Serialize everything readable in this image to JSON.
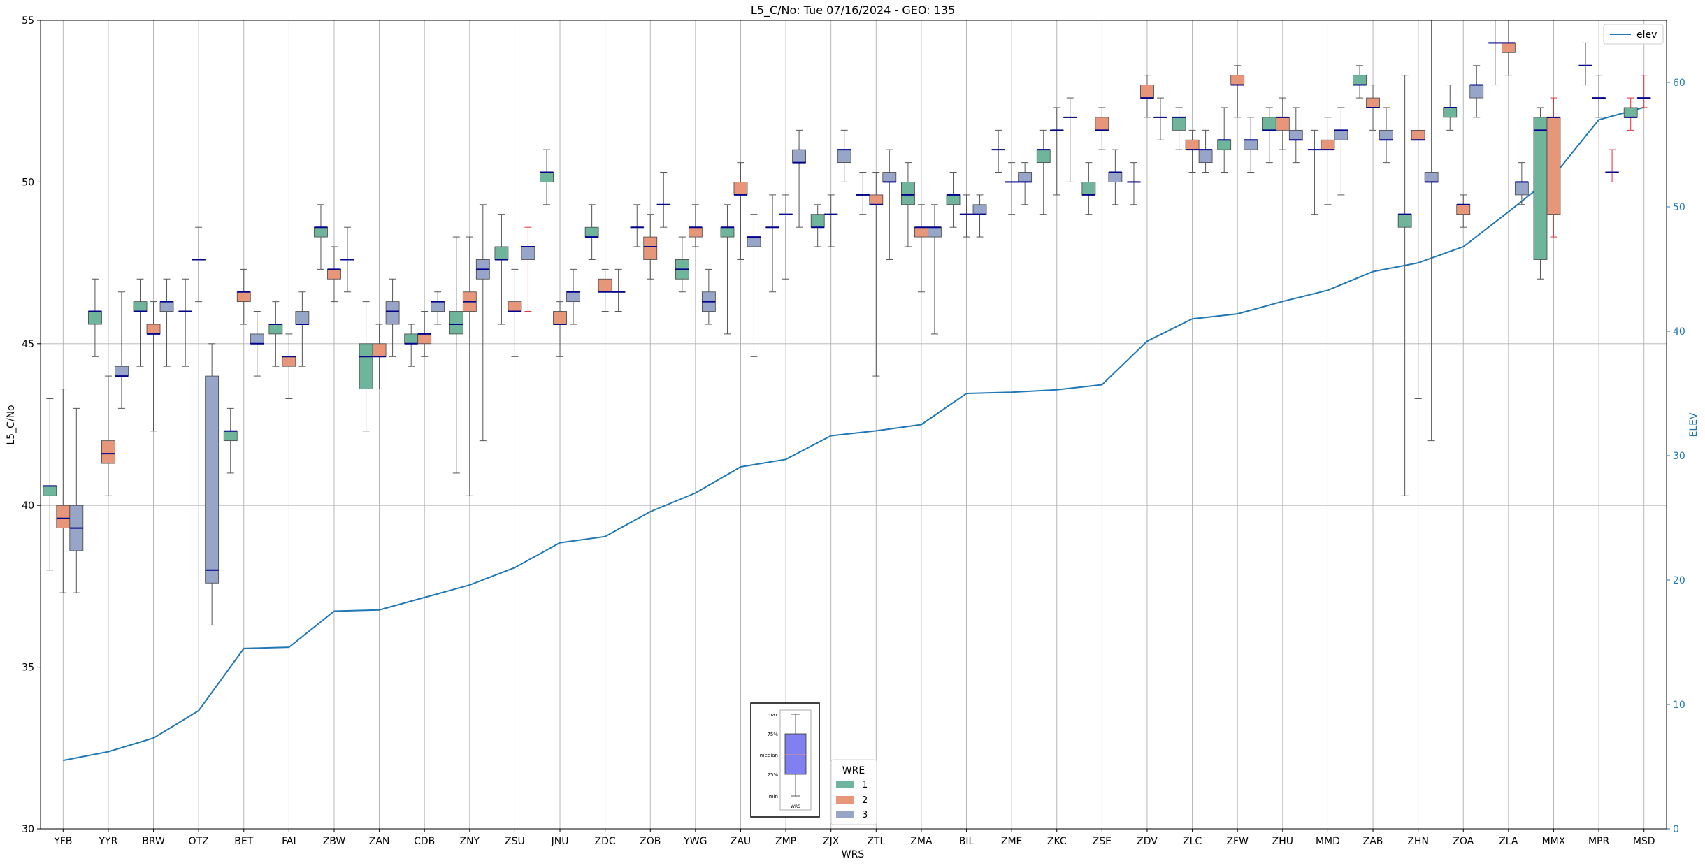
{
  "chart_data": {
    "type": "box",
    "title": "L5_C/No: Tue 07/16/2024 - GEO: 135",
    "xlabel": "WRS",
    "ylabel": "L5_C/No",
    "y2label": "ELEV",
    "ylim": [
      30,
      55
    ],
    "y2lim": [
      0,
      65
    ],
    "yticks": [
      30,
      35,
      40,
      45,
      50,
      55
    ],
    "y2ticks": [
      0,
      10,
      20,
      30,
      40,
      50,
      60
    ],
    "grid": true,
    "legend_line": {
      "label": "elev",
      "position": "top-right"
    },
    "legend_wre": {
      "title": "WRE",
      "entries": [
        "1",
        "2",
        "3"
      ],
      "position": "bottom-center"
    },
    "key_inset": {
      "labels": [
        "max",
        "75%",
        "median",
        "25%",
        "min"
      ],
      "caption": "WRS"
    },
    "colors": {
      "wre1": "#6fb59c",
      "wre2": "#e8967a",
      "wre3": "#97a5c9",
      "median": "#00008b",
      "whisker": "#555555",
      "whisker_alt": "#e0303a",
      "elev": "#1f77b4",
      "grid": "#b0b0b0"
    },
    "categories": [
      "YFB",
      "YYR",
      "BRW",
      "OTZ",
      "BET",
      "FAI",
      "ZBW",
      "ZAN",
      "CDB",
      "ZNY",
      "ZSU",
      "JNU",
      "ZDC",
      "ZOB",
      "YWG",
      "ZAU",
      "ZMP",
      "ZJX",
      "ZTL",
      "ZMA",
      "BIL",
      "ZME",
      "ZKC",
      "ZSE",
      "ZDV",
      "ZLC",
      "ZFW",
      "ZHU",
      "MMD",
      "ZAB",
      "ZHN",
      "ZOA",
      "ZLA",
      "MMX",
      "MPR",
      "MSD"
    ],
    "elev": [
      5.5,
      6.2,
      7.3,
      9.5,
      14.5,
      14.6,
      17.5,
      17.6,
      18.6,
      19.6,
      21.0,
      23.0,
      23.5,
      25.5,
      27.0,
      29.1,
      29.7,
      31.6,
      32.0,
      32.5,
      35.0,
      35.1,
      35.3,
      35.7,
      39.2,
      41.0,
      41.4,
      42.4,
      43.3,
      44.8,
      45.5,
      46.8,
      49.6,
      52.5,
      57.0,
      58.0
    ],
    "boxes": [
      {
        "cat": "YFB",
        "wre": 1,
        "min": 38.0,
        "q1": 40.3,
        "med": 40.6,
        "q3": 40.6,
        "max": 43.3
      },
      {
        "cat": "YFB",
        "wre": 2,
        "min": 37.3,
        "q1": 39.3,
        "med": 39.6,
        "q3": 40.0,
        "max": 43.6
      },
      {
        "cat": "YFB",
        "wre": 3,
        "min": 37.3,
        "q1": 38.6,
        "med": 39.3,
        "q3": 40.0,
        "max": 43.0
      },
      {
        "cat": "YYR",
        "wre": 1,
        "min": 44.6,
        "q1": 45.6,
        "med": 46.0,
        "q3": 46.0,
        "max": 47.0
      },
      {
        "cat": "YYR",
        "wre": 2,
        "min": 40.3,
        "q1": 41.3,
        "med": 41.6,
        "q3": 42.0,
        "max": 44.0
      },
      {
        "cat": "YYR",
        "wre": 3,
        "min": 43.0,
        "q1": 44.0,
        "med": 44.0,
        "q3": 44.3,
        "max": 46.6
      },
      {
        "cat": "BRW",
        "wre": 1,
        "min": 44.3,
        "q1": 46.0,
        "med": 46.0,
        "q3": 46.3,
        "max": 47.0
      },
      {
        "cat": "BRW",
        "wre": 2,
        "min": 42.3,
        "q1": 45.3,
        "med": 45.3,
        "q3": 45.6,
        "max": 46.3
      },
      {
        "cat": "BRW",
        "wre": 3,
        "min": 44.3,
        "q1": 46.0,
        "med": 46.3,
        "q3": 46.3,
        "max": 47.0
      },
      {
        "cat": "OTZ",
        "wre": 1,
        "min": 44.3,
        "q1": 46.0,
        "med": 46.0,
        "q3": 46.0,
        "max": 47.0
      },
      {
        "cat": "OTZ",
        "wre": 2,
        "min": 46.3,
        "q1": 47.6,
        "med": 47.6,
        "q3": 47.6,
        "max": 48.6
      },
      {
        "cat": "OTZ",
        "wre": 3,
        "min": 36.3,
        "q1": 37.6,
        "med": 38.0,
        "q3": 44.0,
        "max": 45.0
      },
      {
        "cat": "BET",
        "wre": 1,
        "min": 41.0,
        "q1": 42.0,
        "med": 42.3,
        "q3": 42.3,
        "max": 43.0
      },
      {
        "cat": "BET",
        "wre": 2,
        "min": 45.6,
        "q1": 46.3,
        "med": 46.6,
        "q3": 46.6,
        "max": 47.3
      },
      {
        "cat": "BET",
        "wre": 3,
        "min": 44.0,
        "q1": 45.0,
        "med": 45.0,
        "q3": 45.3,
        "max": 46.0
      },
      {
        "cat": "FAI",
        "wre": 1,
        "min": 44.3,
        "q1": 45.3,
        "med": 45.6,
        "q3": 45.6,
        "max": 46.3
      },
      {
        "cat": "FAI",
        "wre": 2,
        "min": 43.3,
        "q1": 44.3,
        "med": 44.6,
        "q3": 44.6,
        "max": 45.3
      },
      {
        "cat": "FAI",
        "wre": 3,
        "min": 44.3,
        "q1": 45.6,
        "med": 45.6,
        "q3": 46.0,
        "max": 46.6
      },
      {
        "cat": "ZBW",
        "wre": 1,
        "min": 47.3,
        "q1": 48.3,
        "med": 48.6,
        "q3": 48.6,
        "max": 49.3
      },
      {
        "cat": "ZBW",
        "wre": 2,
        "min": 46.3,
        "q1": 47.0,
        "med": 47.3,
        "q3": 47.3,
        "max": 48.0
      },
      {
        "cat": "ZBW",
        "wre": 3,
        "min": 46.6,
        "q1": 47.6,
        "med": 47.6,
        "q3": 47.6,
        "max": 48.6
      },
      {
        "cat": "ZAN",
        "wre": 1,
        "min": 42.3,
        "q1": 43.6,
        "med": 44.6,
        "q3": 45.0,
        "max": 46.3
      },
      {
        "cat": "ZAN",
        "wre": 2,
        "min": 43.6,
        "q1": 44.6,
        "med": 44.6,
        "q3": 45.0,
        "max": 45.6
      },
      {
        "cat": "ZAN",
        "wre": 3,
        "min": 44.6,
        "q1": 45.6,
        "med": 46.0,
        "q3": 46.3,
        "max": 47.0
      },
      {
        "cat": "CDB",
        "wre": 1,
        "min": 44.3,
        "q1": 45.0,
        "med": 45.0,
        "q3": 45.3,
        "max": 45.6
      },
      {
        "cat": "CDB",
        "wre": 2,
        "min": 44.6,
        "q1": 45.0,
        "med": 45.3,
        "q3": 45.3,
        "max": 46.0
      },
      {
        "cat": "CDB",
        "wre": 3,
        "min": 45.6,
        "q1": 46.0,
        "med": 46.3,
        "q3": 46.3,
        "max": 46.6
      },
      {
        "cat": "ZNY",
        "wre": 1,
        "min": 41.0,
        "q1": 45.3,
        "med": 45.6,
        "q3": 46.0,
        "max": 48.3
      },
      {
        "cat": "ZNY",
        "wre": 2,
        "min": 40.3,
        "q1": 46.0,
        "med": 46.3,
        "q3": 46.6,
        "max": 48.3
      },
      {
        "cat": "ZNY",
        "wre": 3,
        "min": 42.0,
        "q1": 47.0,
        "med": 47.3,
        "q3": 47.6,
        "max": 49.3
      },
      {
        "cat": "ZSU",
        "wre": 1,
        "min": 45.6,
        "q1": 47.6,
        "med": 47.6,
        "q3": 48.0,
        "max": 49.0
      },
      {
        "cat": "ZSU",
        "wre": 2,
        "min": 44.6,
        "q1": 46.0,
        "med": 46.0,
        "q3": 46.3,
        "max": 47.3
      },
      {
        "cat": "ZSU",
        "wre": 3,
        "min": 46.0,
        "q1": 47.6,
        "med": 48.0,
        "q3": 48.0,
        "max": 48.6,
        "alt": true
      },
      {
        "cat": "JNU",
        "wre": 1,
        "min": 49.3,
        "q1": 50.0,
        "med": 50.3,
        "q3": 50.3,
        "max": 51.0
      },
      {
        "cat": "JNU",
        "wre": 2,
        "min": 44.6,
        "q1": 45.6,
        "med": 45.6,
        "q3": 46.0,
        "max": 46.3
      },
      {
        "cat": "JNU",
        "wre": 3,
        "min": 45.6,
        "q1": 46.3,
        "med": 46.6,
        "q3": 46.6,
        "max": 47.3
      },
      {
        "cat": "ZDC",
        "wre": 1,
        "min": 47.6,
        "q1": 48.3,
        "med": 48.3,
        "q3": 48.6,
        "max": 49.3
      },
      {
        "cat": "ZDC",
        "wre": 2,
        "min": 46.0,
        "q1": 46.6,
        "med": 46.6,
        "q3": 47.0,
        "max": 47.3
      },
      {
        "cat": "ZDC",
        "wre": 3,
        "min": 46.0,
        "q1": 46.6,
        "med": 46.6,
        "q3": 46.6,
        "max": 47.3
      },
      {
        "cat": "ZOB",
        "wre": 1,
        "min": 48.0,
        "q1": 48.6,
        "med": 48.6,
        "q3": 48.6,
        "max": 49.3
      },
      {
        "cat": "ZOB",
        "wre": 2,
        "min": 47.0,
        "q1": 47.6,
        "med": 48.0,
        "q3": 48.3,
        "max": 49.0
      },
      {
        "cat": "ZOB",
        "wre": 3,
        "min": 48.6,
        "q1": 49.3,
        "med": 49.3,
        "q3": 49.3,
        "max": 50.3
      },
      {
        "cat": "YWG",
        "wre": 1,
        "min": 46.6,
        "q1": 47.0,
        "med": 47.3,
        "q3": 47.6,
        "max": 48.3
      },
      {
        "cat": "YWG",
        "wre": 2,
        "min": 48.0,
        "q1": 48.3,
        "med": 48.6,
        "q3": 48.6,
        "max": 49.3
      },
      {
        "cat": "YWG",
        "wre": 3,
        "min": 45.6,
        "q1": 46.0,
        "med": 46.3,
        "q3": 46.6,
        "max": 47.3
      },
      {
        "cat": "ZAU",
        "wre": 1,
        "min": 45.3,
        "q1": 48.3,
        "med": 48.6,
        "q3": 48.6,
        "max": 49.3
      },
      {
        "cat": "ZAU",
        "wre": 2,
        "min": 47.6,
        "q1": 49.6,
        "med": 49.6,
        "q3": 50.0,
        "max": 50.6
      },
      {
        "cat": "ZAU",
        "wre": 3,
        "min": 44.6,
        "q1": 48.0,
        "med": 48.3,
        "q3": 48.3,
        "max": 49.0
      },
      {
        "cat": "ZMP",
        "wre": 1,
        "min": 46.6,
        "q1": 48.6,
        "med": 48.6,
        "q3": 48.6,
        "max": 49.6
      },
      {
        "cat": "ZMP",
        "wre": 2,
        "min": 47.0,
        "q1": 49.0,
        "med": 49.0,
        "q3": 49.0,
        "max": 49.6
      },
      {
        "cat": "ZMP",
        "wre": 3,
        "min": 48.6,
        "q1": 50.6,
        "med": 50.6,
        "q3": 51.0,
        "max": 51.6
      },
      {
        "cat": "ZJX",
        "wre": 1,
        "min": 48.0,
        "q1": 48.6,
        "med": 48.6,
        "q3": 49.0,
        "max": 49.3
      },
      {
        "cat": "ZJX",
        "wre": 2,
        "min": 48.0,
        "q1": 49.0,
        "med": 49.0,
        "q3": 49.0,
        "max": 49.6
      },
      {
        "cat": "ZJX",
        "wre": 3,
        "min": 50.0,
        "q1": 50.6,
        "med": 51.0,
        "q3": 51.0,
        "max": 51.6
      },
      {
        "cat": "ZTL",
        "wre": 1,
        "min": 49.0,
        "q1": 49.6,
        "med": 49.6,
        "q3": 49.6,
        "max": 50.3
      },
      {
        "cat": "ZTL",
        "wre": 2,
        "min": 44.0,
        "q1": 49.3,
        "med": 49.3,
        "q3": 49.6,
        "max": 50.3
      },
      {
        "cat": "ZTL",
        "wre": 3,
        "min": 47.6,
        "q1": 50.0,
        "med": 50.0,
        "q3": 50.3,
        "max": 51.0
      },
      {
        "cat": "ZMA",
        "wre": 1,
        "min": 48.0,
        "q1": 49.3,
        "med": 49.6,
        "q3": 50.0,
        "max": 50.6
      },
      {
        "cat": "ZMA",
        "wre": 2,
        "min": 46.6,
        "q1": 48.3,
        "med": 48.6,
        "q3": 48.6,
        "max": 49.3
      },
      {
        "cat": "ZMA",
        "wre": 3,
        "min": 45.3,
        "q1": 48.3,
        "med": 48.6,
        "q3": 48.6,
        "max": 49.3
      },
      {
        "cat": "BIL",
        "wre": 1,
        "min": 48.6,
        "q1": 49.3,
        "med": 49.6,
        "q3": 49.6,
        "max": 50.3
      },
      {
        "cat": "BIL",
        "wre": 2,
        "min": 48.3,
        "q1": 49.0,
        "med": 49.0,
        "q3": 49.0,
        "max": 49.6
      },
      {
        "cat": "BIL",
        "wre": 3,
        "min": 48.3,
        "q1": 49.0,
        "med": 49.0,
        "q3": 49.3,
        "max": 49.6
      },
      {
        "cat": "ZME",
        "wre": 1,
        "min": 50.3,
        "q1": 51.0,
        "med": 51.0,
        "q3": 51.0,
        "max": 51.6
      },
      {
        "cat": "ZME",
        "wre": 2,
        "min": 49.0,
        "q1": 50.0,
        "med": 50.0,
        "q3": 50.0,
        "max": 50.6
      },
      {
        "cat": "ZME",
        "wre": 3,
        "min": 49.3,
        "q1": 50.0,
        "med": 50.0,
        "q3": 50.3,
        "max": 50.6
      },
      {
        "cat": "ZKC",
        "wre": 1,
        "min": 49.0,
        "q1": 50.6,
        "med": 51.0,
        "q3": 51.0,
        "max": 51.6
      },
      {
        "cat": "ZKC",
        "wre": 2,
        "min": 49.6,
        "q1": 51.6,
        "med": 51.6,
        "q3": 51.6,
        "max": 52.3
      },
      {
        "cat": "ZKC",
        "wre": 3,
        "min": 50.0,
        "q1": 52.0,
        "med": 52.0,
        "q3": 52.0,
        "max": 52.6
      },
      {
        "cat": "ZSE",
        "wre": 1,
        "min": 49.0,
        "q1": 49.6,
        "med": 49.6,
        "q3": 50.0,
        "max": 50.6
      },
      {
        "cat": "ZSE",
        "wre": 2,
        "min": 51.0,
        "q1": 51.6,
        "med": 51.6,
        "q3": 52.0,
        "max": 52.3
      },
      {
        "cat": "ZSE",
        "wre": 3,
        "min": 49.3,
        "q1": 50.0,
        "med": 50.3,
        "q3": 50.3,
        "max": 51.0
      },
      {
        "cat": "ZDV",
        "wre": 1,
        "min": 49.3,
        "q1": 50.0,
        "med": 50.0,
        "q3": 50.0,
        "max": 50.6
      },
      {
        "cat": "ZDV",
        "wre": 2,
        "min": 52.0,
        "q1": 52.6,
        "med": 52.6,
        "q3": 53.0,
        "max": 53.3
      },
      {
        "cat": "ZDV",
        "wre": 3,
        "min": 51.3,
        "q1": 52.0,
        "med": 52.0,
        "q3": 52.0,
        "max": 52.6
      },
      {
        "cat": "ZLC",
        "wre": 1,
        "min": 51.0,
        "q1": 51.6,
        "med": 52.0,
        "q3": 52.0,
        "max": 52.3
      },
      {
        "cat": "ZLC",
        "wre": 2,
        "min": 50.3,
        "q1": 51.0,
        "med": 51.0,
        "q3": 51.3,
        "max": 51.6
      },
      {
        "cat": "ZLC",
        "wre": 3,
        "min": 50.3,
        "q1": 50.6,
        "med": 51.0,
        "q3": 51.0,
        "max": 51.6
      },
      {
        "cat": "ZFW",
        "wre": 1,
        "min": 50.3,
        "q1": 51.0,
        "med": 51.3,
        "q3": 51.3,
        "max": 52.3
      },
      {
        "cat": "ZFW",
        "wre": 2,
        "min": 52.0,
        "q1": 53.0,
        "med": 53.0,
        "q3": 53.3,
        "max": 53.6
      },
      {
        "cat": "ZFW",
        "wre": 3,
        "min": 50.3,
        "q1": 51.0,
        "med": 51.3,
        "q3": 51.3,
        "max": 52.0
      },
      {
        "cat": "ZHU",
        "wre": 1,
        "min": 50.6,
        "q1": 51.6,
        "med": 51.6,
        "q3": 52.0,
        "max": 52.3
      },
      {
        "cat": "ZHU",
        "wre": 2,
        "min": 51.0,
        "q1": 51.6,
        "med": 52.0,
        "q3": 52.0,
        "max": 52.6
      },
      {
        "cat": "ZHU",
        "wre": 3,
        "min": 50.6,
        "q1": 51.3,
        "med": 51.3,
        "q3": 51.6,
        "max": 52.3
      },
      {
        "cat": "MMD",
        "wre": 1,
        "min": 49.0,
        "q1": 51.0,
        "med": 51.0,
        "q3": 51.0,
        "max": 51.6
      },
      {
        "cat": "MMD",
        "wre": 2,
        "min": 49.3,
        "q1": 51.0,
        "med": 51.0,
        "q3": 51.3,
        "max": 52.0
      },
      {
        "cat": "MMD",
        "wre": 3,
        "min": 49.6,
        "q1": 51.3,
        "med": 51.6,
        "q3": 51.6,
        "max": 52.3
      },
      {
        "cat": "ZAB",
        "wre": 1,
        "min": 52.6,
        "q1": 53.0,
        "med": 53.0,
        "q3": 53.3,
        "max": 53.6
      },
      {
        "cat": "ZAB",
        "wre": 2,
        "min": 51.6,
        "q1": 52.3,
        "med": 52.3,
        "q3": 52.6,
        "max": 53.0
      },
      {
        "cat": "ZAB",
        "wre": 3,
        "min": 50.6,
        "q1": 51.3,
        "med": 51.3,
        "q3": 51.6,
        "max": 52.3
      },
      {
        "cat": "ZHN",
        "wre": 1,
        "min": 40.3,
        "q1": 48.6,
        "med": 49.0,
        "q3": 49.0,
        "max": 53.3
      },
      {
        "cat": "ZHN",
        "wre": 2,
        "min": 43.3,
        "q1": 51.3,
        "med": 51.3,
        "q3": 51.6,
        "max": 55.0
      },
      {
        "cat": "ZHN",
        "wre": 3,
        "min": 42.0,
        "q1": 50.0,
        "med": 50.0,
        "q3": 50.3,
        "max": 55.0
      },
      {
        "cat": "ZOA",
        "wre": 1,
        "min": 51.6,
        "q1": 52.0,
        "med": 52.3,
        "q3": 52.3,
        "max": 53.0
      },
      {
        "cat": "ZOA",
        "wre": 2,
        "min": 48.6,
        "q1": 49.0,
        "med": 49.3,
        "q3": 49.3,
        "max": 49.6
      },
      {
        "cat": "ZOA",
        "wre": 3,
        "min": 52.0,
        "q1": 52.6,
        "med": 53.0,
        "q3": 53.0,
        "max": 53.6
      },
      {
        "cat": "ZLA",
        "wre": 1,
        "min": 53.0,
        "q1": 54.3,
        "med": 54.3,
        "q3": 54.3,
        "max": 55.0
      },
      {
        "cat": "ZLA",
        "wre": 2,
        "min": 53.3,
        "q1": 54.0,
        "med": 54.3,
        "q3": 54.3,
        "max": 55.0
      },
      {
        "cat": "ZLA",
        "wre": 3,
        "min": 49.3,
        "q1": 49.6,
        "med": 50.0,
        "q3": 50.0,
        "max": 50.6
      },
      {
        "cat": "MMX",
        "wre": 1,
        "min": 47.0,
        "q1": 47.6,
        "med": 51.6,
        "q3": 52.0,
        "max": 52.3
      },
      {
        "cat": "MMX",
        "wre": 2,
        "min": 48.3,
        "q1": 49.0,
        "med": 52.0,
        "q3": 52.0,
        "max": 52.6,
        "alt": true
      },
      {
        "cat": "MPR",
        "wre": 1,
        "min": 53.0,
        "q1": 53.6,
        "med": 53.6,
        "q3": 53.6,
        "max": 54.3
      },
      {
        "cat": "MPR",
        "wre": 2,
        "min": 52.0,
        "q1": 52.6,
        "med": 52.6,
        "q3": 52.6,
        "max": 53.3
      },
      {
        "cat": "MPR",
        "wre": 3,
        "min": 50.0,
        "q1": 50.3,
        "med": 50.3,
        "q3": 50.3,
        "max": 51.0,
        "alt": true
      },
      {
        "cat": "MSD",
        "wre": 1,
        "min": 51.6,
        "q1": 52.0,
        "med": 52.0,
        "q3": 52.3,
        "max": 52.6,
        "alt": true
      },
      {
        "cat": "MSD",
        "wre": 2,
        "min": 52.3,
        "q1": 52.6,
        "med": 52.6,
        "q3": 52.6,
        "max": 53.3,
        "alt": true
      }
    ]
  }
}
